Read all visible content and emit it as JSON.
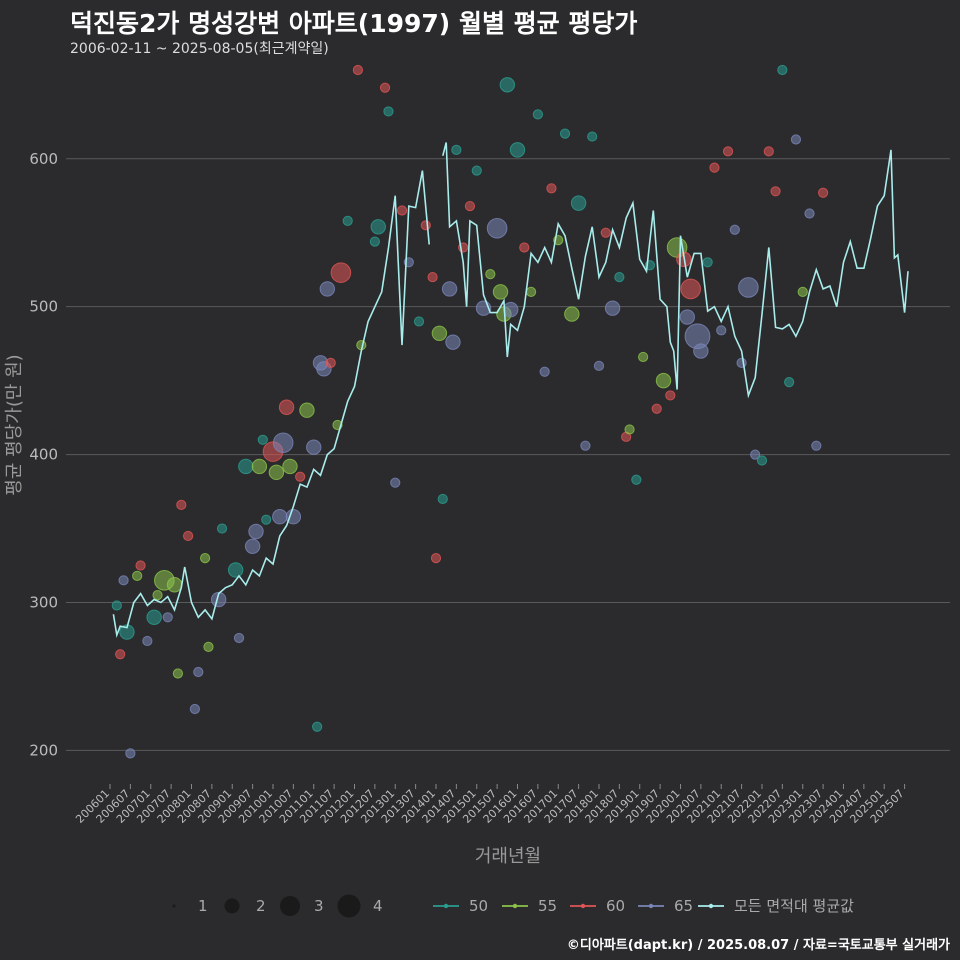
{
  "header": {
    "title": "덕진동2가 명성강변 아파트(1997) 월별 평균 평당가",
    "subtitle": "2006-02-11 ~ 2025-08-05(최근계약일)"
  },
  "footer": {
    "credit": "©디아파트(dapt.kr) / 2025.08.07 / 자료=국토교통부 실거래가"
  },
  "colors": {
    "background": "#2b2b2d",
    "grid": "#5a5a5c",
    "avg_line": "#a8ecec",
    "area_50": "#2a9d8f",
    "area_55": "#8bc34a",
    "area_60": "#e05555",
    "area_65": "#7a86b8"
  },
  "chart_data": {
    "type": "scatter",
    "xlabel": "거래년월",
    "ylabel": "평균 평당가(만 원)",
    "ylim": [
      180,
      660
    ],
    "y_ticks": [
      200,
      300,
      400,
      500,
      600
    ],
    "x_tick_labels": [
      "200601",
      "200607",
      "200701",
      "200707",
      "200801",
      "200807",
      "200901",
      "200907",
      "201001",
      "201007",
      "201101",
      "201107",
      "201201",
      "201207",
      "201301",
      "201307",
      "201401",
      "201407",
      "201501",
      "201507",
      "201601",
      "201607",
      "201701",
      "201707",
      "201801",
      "201807",
      "201901",
      "201907",
      "202001",
      "202007",
      "202101",
      "202107",
      "202201",
      "202207",
      "202301",
      "202307",
      "202401",
      "202407",
      "202501",
      "202507"
    ],
    "grid": true,
    "legend_position": "bottom",
    "size_legend": {
      "labels": [
        "1",
        "2",
        "3",
        "4"
      ],
      "values": [
        1,
        2,
        3,
        4
      ]
    },
    "series": [
      {
        "name": "50",
        "color": "#2a9d8f"
      },
      {
        "name": "55",
        "color": "#8bc34a"
      },
      {
        "name": "60",
        "color": "#e05555"
      },
      {
        "name": "65",
        "color": "#7a86b8"
      },
      {
        "name": "모든 면적대 평균값",
        "color": "#a8ecec"
      }
    ],
    "avg_line": [
      [
        "2006-02",
        292
      ],
      [
        "2006-03",
        278
      ],
      [
        "2006-04",
        284
      ],
      [
        "2006-06",
        283
      ],
      [
        "2006-08",
        300
      ],
      [
        "2006-10",
        306
      ],
      [
        "2006-12",
        298
      ],
      [
        "2007-02",
        302
      ],
      [
        "2007-04",
        300
      ],
      [
        "2007-06",
        304
      ],
      [
        "2007-08",
        295
      ],
      [
        "2007-10",
        310
      ],
      [
        "2007-11",
        324
      ],
      [
        "2008-01",
        300
      ],
      [
        "2008-03",
        290
      ],
      [
        "2008-05",
        295
      ],
      [
        "2008-07",
        289
      ],
      [
        "2008-09",
        306
      ],
      [
        "2008-11",
        310
      ],
      [
        "2009-01",
        312
      ],
      [
        "2009-03",
        318
      ],
      [
        "2009-05",
        312
      ],
      [
        "2009-07",
        322
      ],
      [
        "2009-09",
        318
      ],
      [
        "2009-11",
        330
      ],
      [
        "2010-01",
        326
      ],
      [
        "2010-03",
        345
      ],
      [
        "2010-05",
        352
      ],
      [
        "2010-07",
        365
      ],
      [
        "2010-09",
        380
      ],
      [
        "2010-11",
        378
      ],
      [
        "2011-01",
        390
      ],
      [
        "2011-03",
        386
      ],
      [
        "2011-05",
        400
      ],
      [
        "2011-07",
        404
      ],
      [
        "2011-09",
        420
      ],
      [
        "2011-11",
        436
      ],
      [
        "2012-01",
        446
      ],
      [
        "2012-03",
        470
      ],
      [
        "2012-05",
        490
      ],
      [
        "2012-07",
        500
      ],
      [
        "2012-09",
        510
      ],
      [
        "2012-11",
        540
      ],
      [
        "2013-01",
        575
      ],
      [
        "2013-03",
        474
      ],
      [
        "2013-05",
        568
      ],
      [
        "2013-07",
        567
      ],
      [
        "2013-09",
        592
      ],
      [
        "2013-11",
        542
      ],
      [
        "2014-03",
        602
      ],
      [
        "2014-04",
        611
      ],
      [
        "2014-05",
        554
      ],
      [
        "2014-07",
        558
      ],
      [
        "2014-09",
        530
      ],
      [
        "2014-10",
        500
      ],
      [
        "2014-11",
        558
      ],
      [
        "2015-01",
        555
      ],
      [
        "2015-03",
        508
      ],
      [
        "2015-05",
        496
      ],
      [
        "2015-07",
        496
      ],
      [
        "2015-09",
        504
      ],
      [
        "2015-10",
        466
      ],
      [
        "2015-11",
        488
      ],
      [
        "2016-01",
        484
      ],
      [
        "2016-03",
        500
      ],
      [
        "2016-05",
        536
      ],
      [
        "2016-07",
        530
      ],
      [
        "2016-09",
        540
      ],
      [
        "2016-11",
        530
      ],
      [
        "2017-01",
        556
      ],
      [
        "2017-03",
        548
      ],
      [
        "2017-05",
        526
      ],
      [
        "2017-07",
        505
      ],
      [
        "2017-09",
        534
      ],
      [
        "2017-11",
        554
      ],
      [
        "2018-01",
        520
      ],
      [
        "2018-03",
        530
      ],
      [
        "2018-05",
        552
      ],
      [
        "2018-07",
        540
      ],
      [
        "2018-09",
        560
      ],
      [
        "2018-11",
        570
      ],
      [
        "2019-01",
        532
      ],
      [
        "2019-03",
        524
      ],
      [
        "2019-05",
        565
      ],
      [
        "2019-07",
        505
      ],
      [
        "2019-09",
        500
      ],
      [
        "2019-10",
        476
      ],
      [
        "2019-11",
        470
      ],
      [
        "2019-12",
        444
      ],
      [
        "2020-01",
        548
      ],
      [
        "2020-03",
        520
      ],
      [
        "2020-05",
        536
      ],
      [
        "2020-07",
        536
      ],
      [
        "2020-09",
        497
      ],
      [
        "2020-11",
        500
      ],
      [
        "2021-01",
        490
      ],
      [
        "2021-03",
        500
      ],
      [
        "2021-05",
        480
      ],
      [
        "2021-07",
        470
      ],
      [
        "2021-09",
        440
      ],
      [
        "2021-11",
        452
      ],
      [
        "2022-01",
        495
      ],
      [
        "2022-03",
        540
      ],
      [
        "2022-05",
        486
      ],
      [
        "2022-07",
        485
      ],
      [
        "2022-09",
        488
      ],
      [
        "2022-11",
        480
      ],
      [
        "2023-01",
        490
      ],
      [
        "2023-03",
        510
      ],
      [
        "2023-05",
        525
      ],
      [
        "2023-07",
        512
      ],
      [
        "2023-09",
        514
      ],
      [
        "2023-11",
        500
      ],
      [
        "2024-01",
        530
      ],
      [
        "2024-03",
        544
      ],
      [
        "2024-05",
        526
      ],
      [
        "2024-07",
        526
      ],
      [
        "2024-09",
        546
      ],
      [
        "2024-11",
        568
      ],
      [
        "2025-01",
        575
      ],
      [
        "2025-03",
        606
      ],
      [
        "2025-04",
        533
      ],
      [
        "2025-05",
        535
      ],
      [
        "2025-07",
        496
      ],
      [
        "2025-08",
        524
      ]
    ],
    "points": [
      {
        "x": "2006-03",
        "y": 298,
        "area": "50",
        "n": 1
      },
      {
        "x": "2006-04",
        "y": 265,
        "area": "60",
        "n": 1
      },
      {
        "x": "2006-05",
        "y": 315,
        "area": "65",
        "n": 1
      },
      {
        "x": "2006-06",
        "y": 280,
        "area": "50",
        "n": 2
      },
      {
        "x": "2006-07",
        "y": 198,
        "area": "65",
        "n": 1
      },
      {
        "x": "2006-09",
        "y": 318,
        "area": "55",
        "n": 1
      },
      {
        "x": "2006-10",
        "y": 325,
        "area": "60",
        "n": 1
      },
      {
        "x": "2006-12",
        "y": 274,
        "area": "65",
        "n": 1
      },
      {
        "x": "2007-02",
        "y": 290,
        "area": "50",
        "n": 2
      },
      {
        "x": "2007-03",
        "y": 305,
        "area": "55",
        "n": 1
      },
      {
        "x": "2007-05",
        "y": 315,
        "area": "55",
        "n": 3
      },
      {
        "x": "2007-06",
        "y": 290,
        "area": "65",
        "n": 1
      },
      {
        "x": "2007-08",
        "y": 312,
        "area": "55",
        "n": 2
      },
      {
        "x": "2007-09",
        "y": 252,
        "area": "55",
        "n": 1
      },
      {
        "x": "2007-10",
        "y": 366,
        "area": "60",
        "n": 1
      },
      {
        "x": "2007-12",
        "y": 345,
        "area": "60",
        "n": 1
      },
      {
        "x": "2008-02",
        "y": 228,
        "area": "65",
        "n": 1
      },
      {
        "x": "2008-03",
        "y": 253,
        "area": "65",
        "n": 1
      },
      {
        "x": "2008-05",
        "y": 330,
        "area": "55",
        "n": 1
      },
      {
        "x": "2008-06",
        "y": 270,
        "area": "55",
        "n": 1
      },
      {
        "x": "2008-09",
        "y": 302,
        "area": "65",
        "n": 2
      },
      {
        "x": "2008-10",
        "y": 350,
        "area": "50",
        "n": 1
      },
      {
        "x": "2009-02",
        "y": 322,
        "area": "50",
        "n": 2
      },
      {
        "x": "2009-03",
        "y": 276,
        "area": "65",
        "n": 1
      },
      {
        "x": "2009-05",
        "y": 392,
        "area": "50",
        "n": 2
      },
      {
        "x": "2009-07",
        "y": 338,
        "area": "65",
        "n": 2
      },
      {
        "x": "2009-08",
        "y": 348,
        "area": "65",
        "n": 2
      },
      {
        "x": "2009-09",
        "y": 392,
        "area": "55",
        "n": 2
      },
      {
        "x": "2009-10",
        "y": 410,
        "area": "50",
        "n": 1
      },
      {
        "x": "2009-11",
        "y": 356,
        "area": "50",
        "n": 1
      },
      {
        "x": "2010-01",
        "y": 402,
        "area": "60",
        "n": 3
      },
      {
        "x": "2010-02",
        "y": 388,
        "area": "55",
        "n": 2
      },
      {
        "x": "2010-03",
        "y": 358,
        "area": "65",
        "n": 2
      },
      {
        "x": "2010-04",
        "y": 408,
        "area": "65",
        "n": 3
      },
      {
        "x": "2010-05",
        "y": 432,
        "area": "60",
        "n": 2
      },
      {
        "x": "2010-06",
        "y": 392,
        "area": "55",
        "n": 2
      },
      {
        "x": "2010-07",
        "y": 358,
        "area": "65",
        "n": 2
      },
      {
        "x": "2010-09",
        "y": 385,
        "area": "60",
        "n": 1
      },
      {
        "x": "2010-11",
        "y": 430,
        "area": "55",
        "n": 2
      },
      {
        "x": "2011-01",
        "y": 405,
        "area": "65",
        "n": 2
      },
      {
        "x": "2011-02",
        "y": 216,
        "area": "50",
        "n": 1
      },
      {
        "x": "2011-03",
        "y": 462,
        "area": "65",
        "n": 2
      },
      {
        "x": "2011-04",
        "y": 458,
        "area": "65",
        "n": 2
      },
      {
        "x": "2011-05",
        "y": 512,
        "area": "65",
        "n": 2
      },
      {
        "x": "2011-06",
        "y": 462,
        "area": "60",
        "n": 1
      },
      {
        "x": "2011-08",
        "y": 420,
        "area": "55",
        "n": 1
      },
      {
        "x": "2011-09",
        "y": 523,
        "area": "60",
        "n": 3
      },
      {
        "x": "2011-11",
        "y": 558,
        "area": "50",
        "n": 1
      },
      {
        "x": "2012-02",
        "y": 660,
        "area": "60",
        "n": 1
      },
      {
        "x": "2012-03",
        "y": 474,
        "area": "55",
        "n": 1
      },
      {
        "x": "2012-07",
        "y": 544,
        "area": "50",
        "n": 1
      },
      {
        "x": "2012-08",
        "y": 554,
        "area": "50",
        "n": 2
      },
      {
        "x": "2012-10",
        "y": 648,
        "area": "60",
        "n": 1
      },
      {
        "x": "2012-11",
        "y": 632,
        "area": "50",
        "n": 1
      },
      {
        "x": "2013-01",
        "y": 381,
        "area": "65",
        "n": 1
      },
      {
        "x": "2013-03",
        "y": 565,
        "area": "60",
        "n": 1
      },
      {
        "x": "2013-05",
        "y": 530,
        "area": "65",
        "n": 1
      },
      {
        "x": "2013-08",
        "y": 490,
        "area": "50",
        "n": 1
      },
      {
        "x": "2013-10",
        "y": 555,
        "area": "60",
        "n": 1
      },
      {
        "x": "2013-12",
        "y": 520,
        "area": "60",
        "n": 1
      },
      {
        "x": "2014-01",
        "y": 330,
        "area": "60",
        "n": 1
      },
      {
        "x": "2014-02",
        "y": 482,
        "area": "55",
        "n": 2
      },
      {
        "x": "2014-03",
        "y": 370,
        "area": "50",
        "n": 1
      },
      {
        "x": "2014-05",
        "y": 512,
        "area": "65",
        "n": 2
      },
      {
        "x": "2014-06",
        "y": 476,
        "area": "65",
        "n": 2
      },
      {
        "x": "2014-07",
        "y": 606,
        "area": "50",
        "n": 1
      },
      {
        "x": "2014-09",
        "y": 540,
        "area": "60",
        "n": 1
      },
      {
        "x": "2014-11",
        "y": 568,
        "area": "60",
        "n": 1
      },
      {
        "x": "2015-01",
        "y": 592,
        "area": "50",
        "n": 1
      },
      {
        "x": "2015-03",
        "y": 499,
        "area": "65",
        "n": 2
      },
      {
        "x": "2015-05",
        "y": 522,
        "area": "55",
        "n": 1
      },
      {
        "x": "2015-07",
        "y": 553,
        "area": "65",
        "n": 3
      },
      {
        "x": "2015-08",
        "y": 510,
        "area": "55",
        "n": 2
      },
      {
        "x": "2015-09",
        "y": 495,
        "area": "55",
        "n": 2
      },
      {
        "x": "2015-10",
        "y": 650,
        "area": "50",
        "n": 2
      },
      {
        "x": "2015-11",
        "y": 498,
        "area": "65",
        "n": 2
      },
      {
        "x": "2016-01",
        "y": 606,
        "area": "50",
        "n": 2
      },
      {
        "x": "2016-03",
        "y": 540,
        "area": "60",
        "n": 1
      },
      {
        "x": "2016-05",
        "y": 510,
        "area": "55",
        "n": 1
      },
      {
        "x": "2016-07",
        "y": 630,
        "area": "50",
        "n": 1
      },
      {
        "x": "2016-09",
        "y": 456,
        "area": "65",
        "n": 1
      },
      {
        "x": "2016-11",
        "y": 580,
        "area": "60",
        "n": 1
      },
      {
        "x": "2017-01",
        "y": 545,
        "area": "55",
        "n": 1
      },
      {
        "x": "2017-03",
        "y": 617,
        "area": "50",
        "n": 1
      },
      {
        "x": "2017-05",
        "y": 495,
        "area": "55",
        "n": 2
      },
      {
        "x": "2017-07",
        "y": 570,
        "area": "50",
        "n": 2
      },
      {
        "x": "2017-09",
        "y": 406,
        "area": "65",
        "n": 1
      },
      {
        "x": "2017-11",
        "y": 615,
        "area": "50",
        "n": 1
      },
      {
        "x": "2018-01",
        "y": 460,
        "area": "65",
        "n": 1
      },
      {
        "x": "2018-03",
        "y": 550,
        "area": "60",
        "n": 1
      },
      {
        "x": "2018-05",
        "y": 499,
        "area": "65",
        "n": 2
      },
      {
        "x": "2018-07",
        "y": 520,
        "area": "50",
        "n": 1
      },
      {
        "x": "2018-09",
        "y": 412,
        "area": "60",
        "n": 1
      },
      {
        "x": "2018-10",
        "y": 417,
        "area": "55",
        "n": 1
      },
      {
        "x": "2018-12",
        "y": 383,
        "area": "50",
        "n": 1
      },
      {
        "x": "2019-02",
        "y": 466,
        "area": "55",
        "n": 1
      },
      {
        "x": "2019-04",
        "y": 528,
        "area": "50",
        "n": 1
      },
      {
        "x": "2019-06",
        "y": 431,
        "area": "60",
        "n": 1
      },
      {
        "x": "2019-08",
        "y": 450,
        "area": "55",
        "n": 2
      },
      {
        "x": "2019-10",
        "y": 440,
        "area": "60",
        "n": 1
      },
      {
        "x": "2019-12",
        "y": 540,
        "area": "55",
        "n": 3
      },
      {
        "x": "2020-02",
        "y": 532,
        "area": "60",
        "n": 2
      },
      {
        "x": "2020-03",
        "y": 493,
        "area": "65",
        "n": 2
      },
      {
        "x": "2020-04",
        "y": 512,
        "area": "60",
        "n": 3
      },
      {
        "x": "2020-06",
        "y": 480,
        "area": "65",
        "n": 4
      },
      {
        "x": "2020-07",
        "y": 470,
        "area": "65",
        "n": 2
      },
      {
        "x": "2020-09",
        "y": 530,
        "area": "50",
        "n": 1
      },
      {
        "x": "2020-11",
        "y": 594,
        "area": "60",
        "n": 1
      },
      {
        "x": "2021-01",
        "y": 484,
        "area": "65",
        "n": 1
      },
      {
        "x": "2021-03",
        "y": 605,
        "area": "60",
        "n": 1
      },
      {
        "x": "2021-05",
        "y": 552,
        "area": "65",
        "n": 1
      },
      {
        "x": "2021-07",
        "y": 462,
        "area": "65",
        "n": 1
      },
      {
        "x": "2021-09",
        "y": 513,
        "area": "65",
        "n": 3
      },
      {
        "x": "2021-11",
        "y": 400,
        "area": "65",
        "n": 1
      },
      {
        "x": "2022-01",
        "y": 396,
        "area": "50",
        "n": 1
      },
      {
        "x": "2022-03",
        "y": 605,
        "area": "60",
        "n": 1
      },
      {
        "x": "2022-05",
        "y": 578,
        "area": "60",
        "n": 1
      },
      {
        "x": "2022-07",
        "y": 660,
        "area": "50",
        "n": 1
      },
      {
        "x": "2022-09",
        "y": 449,
        "area": "50",
        "n": 1
      },
      {
        "x": "2022-11",
        "y": 613,
        "area": "65",
        "n": 1
      },
      {
        "x": "2023-01",
        "y": 510,
        "area": "55",
        "n": 1
      },
      {
        "x": "2023-03",
        "y": 563,
        "area": "65",
        "n": 1
      },
      {
        "x": "2023-05",
        "y": 406,
        "area": "65",
        "n": 1
      },
      {
        "x": "2023-07",
        "y": 577,
        "area": "60",
        "n": 1
      }
    ]
  }
}
